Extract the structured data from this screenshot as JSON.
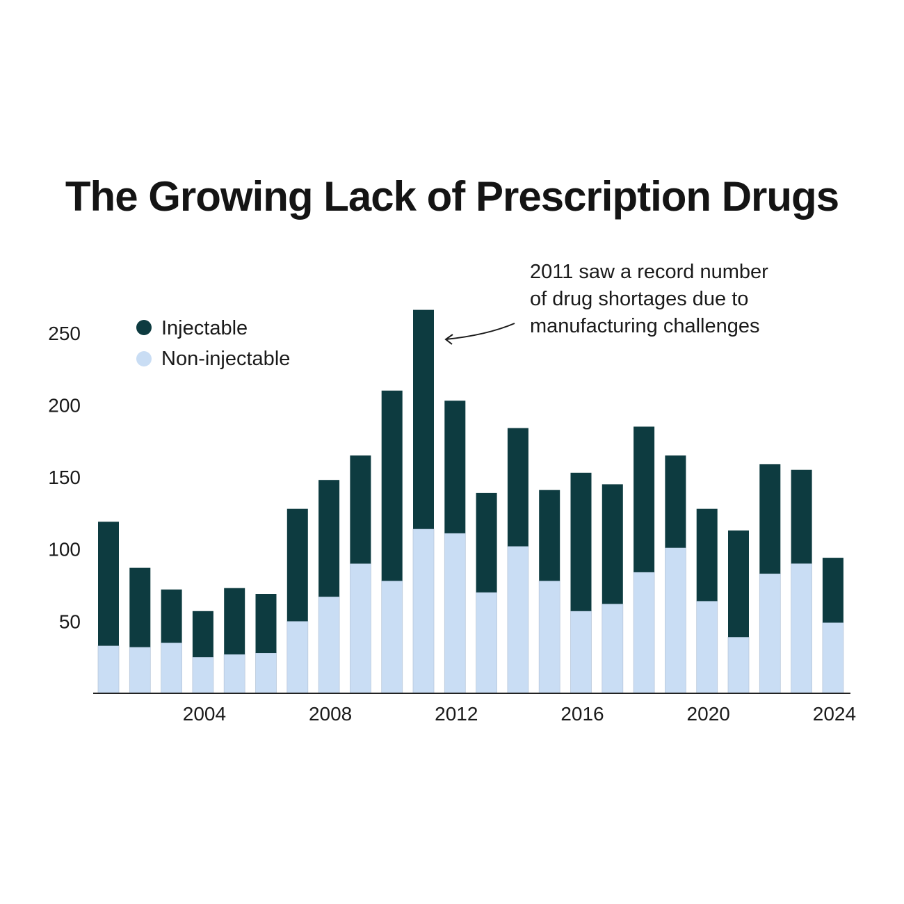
{
  "title": "The Growing Lack of Prescription Drugs",
  "chart_data": {
    "type": "bar",
    "stacked": true,
    "title": "The Growing Lack of Prescription Drugs",
    "xlabel": "",
    "ylabel": "",
    "x": [
      2001,
      2002,
      2003,
      2004,
      2005,
      2006,
      2007,
      2008,
      2009,
      2010,
      2011,
      2012,
      2013,
      2014,
      2015,
      2016,
      2017,
      2018,
      2019,
      2020,
      2021,
      2022,
      2023,
      2024
    ],
    "x_tick_labels": [
      "2004",
      "2008",
      "2012",
      "2016",
      "2020",
      "2024"
    ],
    "x_tick_values": [
      2004,
      2008,
      2012,
      2016,
      2020,
      2024
    ],
    "y_tick_labels": [
      "50",
      "100",
      "150",
      "200",
      "250"
    ],
    "y_tick_values": [
      50,
      100,
      150,
      200,
      250
    ],
    "ylim": [
      0,
      275
    ],
    "series": [
      {
        "name": "Non-injectable",
        "color": "#c9ddf4",
        "values": [
          33,
          32,
          35,
          25,
          27,
          28,
          50,
          67,
          90,
          78,
          114,
          111,
          70,
          102,
          78,
          57,
          62,
          84,
          101,
          64,
          39,
          83,
          90,
          49
        ]
      },
      {
        "name": "Injectable",
        "color": "#0d3b40",
        "values": [
          86,
          55,
          37,
          32,
          46,
          41,
          78,
          81,
          75,
          132,
          152,
          92,
          69,
          82,
          63,
          96,
          83,
          101,
          64,
          64,
          74,
          76,
          65,
          45
        ]
      }
    ],
    "legend": {
      "position": "top-left",
      "entries": [
        "Injectable",
        "Non-injectable"
      ]
    },
    "annotation": {
      "lines": [
        "2011 saw a record number",
        "of drug shortages due to",
        "manufacturing challenges"
      ],
      "target_x": 2011
    },
    "grid": false
  }
}
